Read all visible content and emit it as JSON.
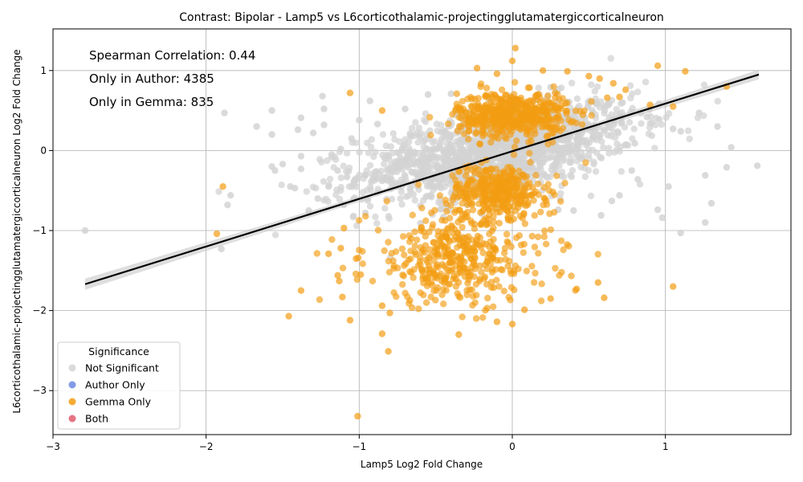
{
  "chart_data": {
    "type": "scatter",
    "title": "Contrast: Bipolar - Lamp5 vs L6corticothalamic-projectingglutamatergiccorticalneuron",
    "xlabel": "Lamp5 Log2 Fold Change",
    "ylabel": "L6corticothalamic-projectingglutamatergiccorticalneuron Log2 Fold Change",
    "xlim": [
      -3.0,
      1.82
    ],
    "ylim": [
      -3.55,
      1.52
    ],
    "x_ticks": [
      -3,
      -2,
      -1,
      0,
      1
    ],
    "y_ticks": [
      -3,
      -2,
      -1,
      0,
      1
    ],
    "x_tick_labels": [
      "−3",
      "−2",
      "−1",
      "0",
      "1"
    ],
    "y_tick_labels": [
      "−3",
      "−2",
      "−1",
      "0",
      "1"
    ],
    "grid": true,
    "legend_position": "lower-left",
    "legend_title": "Significance",
    "annotations": [
      "Spearman Correlation: 0.44",
      "Only in Author: 4385",
      "Only in Gemma: 835"
    ],
    "regression_line": {
      "x": [
        -2.79,
        1.61
      ],
      "y": [
        -1.67,
        0.95
      ],
      "color": "#000000"
    },
    "series": [
      {
        "name": "Not Significant",
        "color": "#d3d3d3",
        "points": [
          [
            -2.79,
            -1.0
          ],
          [
            -1.88,
            0.47
          ],
          [
            -1.84,
            -0.56
          ],
          [
            -1.86,
            -0.68
          ],
          [
            -1.9,
            -1.23
          ],
          [
            -1.67,
            0.3
          ],
          [
            -1.57,
            0.5
          ],
          [
            -1.57,
            0.2
          ],
          [
            -1.55,
            -0.25
          ],
          [
            -1.57,
            -0.2
          ],
          [
            -1.5,
            -0.17
          ],
          [
            -1.45,
            -0.45
          ],
          [
            -1.42,
            -0.47
          ],
          [
            -1.4,
            0.26
          ],
          [
            -1.38,
            -0.07
          ],
          [
            -1.38,
            -0.23
          ],
          [
            -1.33,
            -0.75
          ],
          [
            -1.3,
            0.22
          ],
          [
            -1.27,
            -0.6
          ],
          [
            -1.24,
            0.68
          ],
          [
            -1.23,
            0.32
          ],
          [
            -1.2,
            -0.45
          ],
          [
            -1.18,
            -0.05
          ],
          [
            -1.14,
            -0.25
          ],
          [
            -1.12,
            0.02
          ],
          [
            -1.1,
            -0.68
          ],
          [
            -1.08,
            -0.33
          ],
          [
            -1.05,
            0.15
          ],
          [
            -1.03,
            -0.42
          ],
          [
            -1.0,
            0.38
          ],
          [
            -0.96,
            -0.78
          ],
          [
            -0.93,
            0.62
          ],
          [
            -0.88,
            0.33
          ],
          [
            -1.23,
            0.52
          ],
          [
            -1.38,
            0.41
          ],
          [
            1.22,
            0.47
          ],
          [
            1.26,
            -0.31
          ],
          [
            1.26,
            -0.9
          ],
          [
            1.3,
            -0.66
          ],
          [
            1.34,
            0.3
          ],
          [
            1.4,
            -0.21
          ],
          [
            1.43,
            0.04
          ],
          [
            1.6,
            -0.19
          ],
          [
            1.1,
            -1.03
          ],
          [
            1.02,
            -0.45
          ],
          [
            0.98,
            -0.84
          ],
          [
            0.95,
            -0.74
          ],
          [
            1.05,
            0.27
          ],
          [
            1.1,
            0.24
          ],
          [
            0.96,
            0.39
          ],
          [
            0.88,
            0.42
          ],
          [
            0.82,
            -0.36
          ],
          [
            0.78,
            -0.25
          ],
          [
            0.8,
            0.09
          ],
          [
            0.7,
            -0.56
          ],
          [
            0.72,
            0.6
          ],
          [
            0.65,
            -0.63
          ],
          [
            0.6,
            0.55
          ],
          [
            0.58,
            -0.81
          ],
          [
            0.25,
            0.79
          ],
          [
            -0.4,
            0.71
          ],
          [
            -0.55,
            0.7
          ],
          [
            -0.6,
            -0.91
          ],
          [
            -0.45,
            -0.83
          ],
          [
            0.05,
            -0.58
          ],
          [
            0.15,
            0.63
          ],
          [
            -0.2,
            -0.79
          ],
          [
            0.3,
            -0.74
          ],
          [
            0.4,
            -0.75
          ],
          [
            -0.7,
            0.52
          ]
        ],
        "cloud": {
          "center": [
            -0.1,
            0.0
          ],
          "spread": [
            0.45,
            0.26
          ],
          "count": 1500
        }
      },
      {
        "name": "Author Only",
        "color": "#6d8ae0",
        "points": []
      },
      {
        "name": "Gemma Only",
        "color": "#f39c12",
        "points": [
          [
            -1.93,
            -1.04
          ],
          [
            -1.89,
            -0.45
          ],
          [
            -1.46,
            -2.07
          ],
          [
            -1.38,
            -1.75
          ],
          [
            -1.2,
            -1.29
          ],
          [
            -1.14,
            -1.56
          ],
          [
            -1.13,
            -1.63
          ],
          [
            -1.11,
            -1.83
          ],
          [
            -1.1,
            -0.97
          ],
          [
            -1.12,
            -1.22
          ],
          [
            -1.06,
            -2.12
          ],
          [
            -1.06,
            0.72
          ],
          [
            -1.02,
            -1.35
          ],
          [
            -1.01,
            -3.32
          ],
          [
            -0.99,
            -1.55
          ],
          [
            -0.85,
            -2.29
          ],
          [
            -0.81,
            -2.51
          ],
          [
            -0.8,
            -2.03
          ],
          [
            -0.85,
            -1.94
          ],
          [
            -0.85,
            0.5
          ],
          [
            -0.35,
            -2.3
          ],
          [
            0.0,
            -2.17
          ],
          [
            -0.1,
            -2.14
          ],
          [
            0.08,
            -1.99
          ],
          [
            0.25,
            -1.85
          ],
          [
            0.42,
            -1.73
          ],
          [
            0.56,
            -1.65
          ],
          [
            0.6,
            -1.84
          ],
          [
            1.05,
            -1.7
          ],
          [
            0.02,
            1.28
          ],
          [
            0.0,
            1.12
          ],
          [
            -0.23,
            1.03
          ],
          [
            0.2,
            1.0
          ],
          [
            0.95,
            1.06
          ],
          [
            1.13,
            0.99
          ],
          [
            0.36,
            0.99
          ],
          [
            0.5,
            0.93
          ],
          [
            0.57,
            0.9
          ],
          [
            0.66,
            0.84
          ],
          [
            0.74,
            0.76
          ],
          [
            0.9,
            0.57
          ],
          [
            1.05,
            0.55
          ],
          [
            1.4,
            0.8
          ],
          [
            0.7,
            0.67
          ],
          [
            0.62,
            0.66
          ],
          [
            -0.1,
            0.96
          ],
          [
            0.28,
            0.66
          ]
        ],
        "clouds": [
          {
            "center": [
              0.0,
              0.45
            ],
            "spread": [
              0.18,
              0.14
            ],
            "count": 520
          },
          {
            "center": [
              -0.1,
              -0.5
            ],
            "spread": [
              0.16,
              0.16
            ],
            "count": 350
          },
          {
            "center": [
              -0.35,
              -1.35
            ],
            "spread": [
              0.3,
              0.3
            ],
            "count": 420
          }
        ]
      },
      {
        "name": "Both",
        "color": "#e05c70",
        "points": []
      }
    ]
  }
}
